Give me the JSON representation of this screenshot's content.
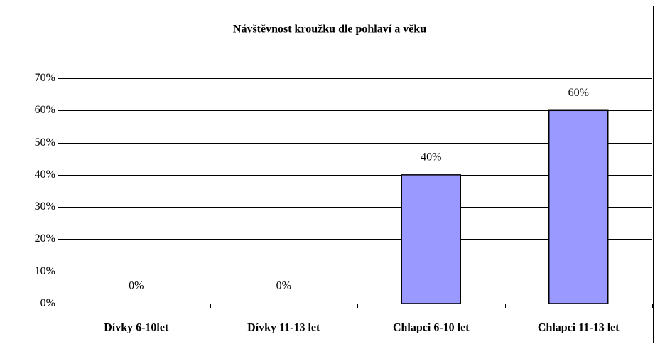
{
  "chart_data": {
    "type": "bar",
    "title": "Návštěvnost kroužku dle pohlaví a věku",
    "categories": [
      "Dívky 6-10let",
      "Dívky 11-13 let",
      "Chlapci 6-10 let",
      "Chlapci 11-13 let"
    ],
    "values": [
      0,
      0,
      40,
      60
    ],
    "value_labels": [
      "0%",
      "0%",
      "40%",
      "60%"
    ],
    "color": "#9999ff",
    "ylim": [
      0,
      70
    ],
    "yticks": [
      {
        "value": 0,
        "label": "0%"
      },
      {
        "value": 10,
        "label": "10%"
      },
      {
        "value": 20,
        "label": "20%"
      },
      {
        "value": 30,
        "label": "30%"
      },
      {
        "value": 40,
        "label": "40%"
      },
      {
        "value": 50,
        "label": "50%"
      },
      {
        "value": 60,
        "label": "60%"
      },
      {
        "value": 70,
        "label": "70%"
      }
    ],
    "grid": true
  }
}
